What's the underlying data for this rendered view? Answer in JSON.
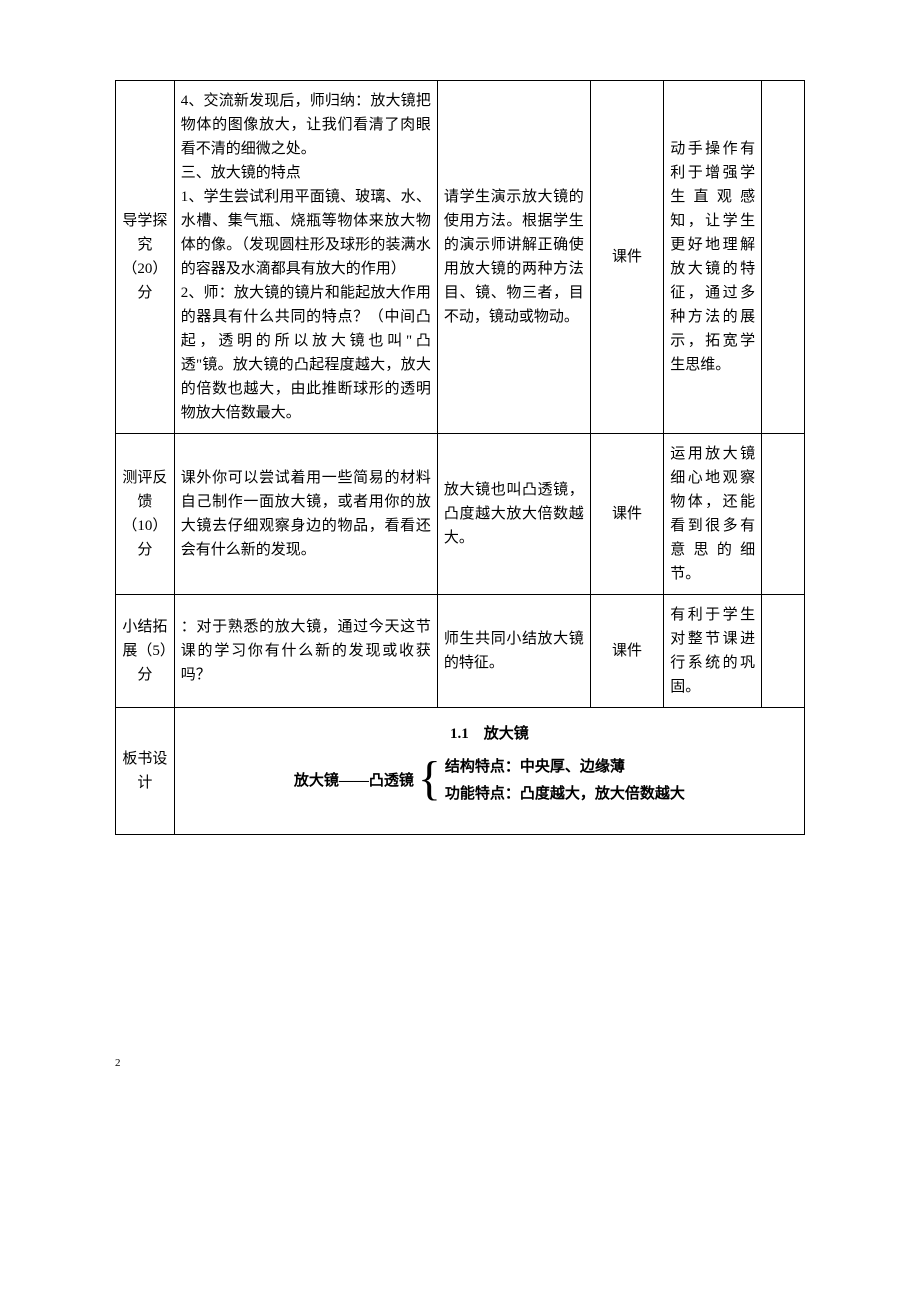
{
  "rows": [
    {
      "label": "导学探究（20）分",
      "c1": "4、交流新发现后，师归纳：放大镜把物体的图像放大，让我们看清了肉眼看不清的细微之处。\n三、放大镜的特点\n1、学生尝试利用平面镜、玻璃、水、水槽、集气瓶、烧瓶等物体来放大物体的像。（发现圆柱形及球形的装满水的容器及水滴都具有放大的作用）\n2、师：放大镜的镜片和能起放大作用的器具有什么共同的特点？（中间凸起，透明的所以放大镜也叫\"凸透\"镜。放大镜的凸起程度越大，放大的倍数也越大，由此推断球形的透明物放大倍数最大。",
      "c2": "请学生演示放大镜的使用方法。根据学生的演示师讲解正确使用放大镜的两种方法目、镜、物三者，目不动，镜动或物动。",
      "c3": "课件",
      "c4": "动手操作有利于增强学生直观感知，让学生更好地理解放大镜的特征，通过多种方法的展示，拓宽学生思维。",
      "c5": ""
    },
    {
      "label": "测评反馈（10）分",
      "c1": "课外你可以尝试着用一些简易的材料自己制作一面放大镜，或者用你的放大镜去仔细观察身边的物品，看看还会有什么新的发现。",
      "c2": "放大镜也叫凸透镜，凸度越大放大倍数越大。",
      "c3": "课件",
      "c4": "运用放大镜细心地观察物体，还能看到很多有意思的细节。",
      "c5": ""
    },
    {
      "label": "小结拓展（5）分",
      "c1": "：对于熟悉的放大镜，通过今天这节课的学习你有什么新的发现或收获吗？",
      "c2": "师生共同小结放大镜的特征。",
      "c3": "课件",
      "c4": "有利于学生对整节课进行系统的巩固。",
      "c5": ""
    }
  ],
  "board": {
    "label": "板书设计",
    "title": "1.1　放大镜",
    "left": "放大镜——凸透镜",
    "right1": "结构特点：中央厚、边缘薄",
    "right2": "功能特点：凸度越大，放大倍数越大"
  },
  "pageNum": "2"
}
